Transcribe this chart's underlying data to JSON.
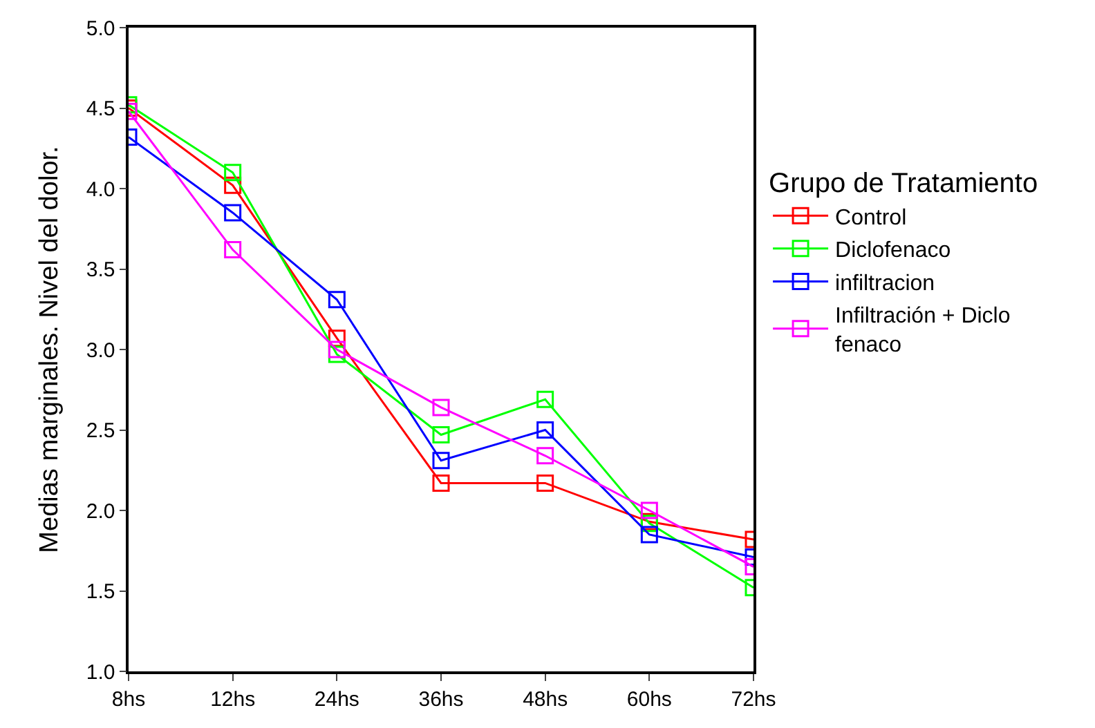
{
  "chart_data": {
    "type": "line",
    "ylabel": "Medias marginales. Nivel del dolor.",
    "legend_title": "Grupo de Tratamiento",
    "categories": [
      "8hs",
      "12hs",
      "24hs",
      "36hs",
      "48hs",
      "60hs",
      "72hs"
    ],
    "ylim": [
      1.0,
      5.0
    ],
    "yticks": [
      {
        "value": 1.0,
        "label": "1.0"
      },
      {
        "value": 1.5,
        "label": "1.5"
      },
      {
        "value": 2.0,
        "label": "2.0"
      },
      {
        "value": 2.5,
        "label": "2.5"
      },
      {
        "value": 3.0,
        "label": "3.0"
      },
      {
        "value": 3.5,
        "label": "3.5"
      },
      {
        "value": 4.0,
        "label": "4.0"
      },
      {
        "value": 4.5,
        "label": "4.5"
      },
      {
        "value": 5.0,
        "label": "5.0"
      }
    ],
    "legend": "right",
    "marker": "square",
    "line_style": "solid",
    "series": [
      {
        "name": "Control",
        "color": "#ff0000",
        "values": [
          4.5,
          4.02,
          3.07,
          2.17,
          2.17,
          1.93,
          1.82
        ]
      },
      {
        "name": "Diclofenaco",
        "color": "#00ff00",
        "values": [
          4.52,
          4.1,
          2.97,
          2.47,
          2.69,
          1.92,
          1.52
        ]
      },
      {
        "name": "infiltracion",
        "color": "#0000ff",
        "values": [
          4.32,
          3.85,
          3.31,
          2.31,
          2.5,
          1.85,
          1.71
        ]
      },
      {
        "name": "Infiltración + Diclo\nfenaco",
        "color": "#ff00ff",
        "values": [
          4.48,
          3.62,
          3.0,
          2.64,
          2.34,
          2.0,
          1.65
        ]
      }
    ]
  }
}
